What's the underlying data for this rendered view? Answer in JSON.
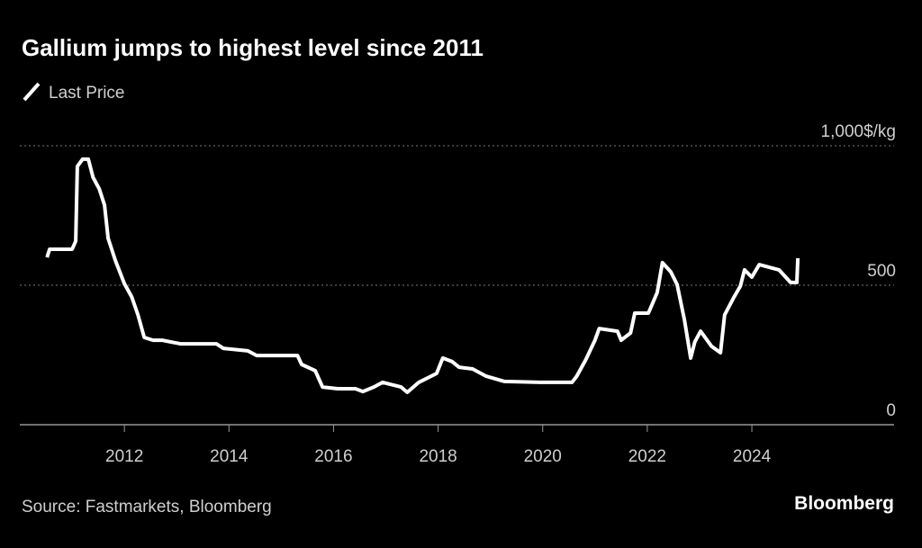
{
  "chart_data": {
    "type": "line",
    "title": "Gallium jumps to highest level since 2011",
    "source": "Source: Fastmarkets, Bloomberg",
    "brand": "Bloomberg",
    "x": [
      2010.52,
      2010.57,
      2011.0,
      2011.07,
      2011.1,
      2011.2,
      2011.31,
      2011.4,
      2011.52,
      2011.62,
      2011.69,
      2011.83,
      2012.0,
      2012.14,
      2012.26,
      2012.38,
      2012.55,
      2012.72,
      2013.07,
      2013.76,
      2013.89,
      2014.36,
      2014.53,
      2015.31,
      2015.39,
      2015.65,
      2015.79,
      2016.08,
      2016.42,
      2016.56,
      2016.77,
      2016.94,
      2017.29,
      2017.41,
      2017.63,
      2017.97,
      2018.09,
      2018.27,
      2018.4,
      2018.66,
      2018.92,
      2019.27,
      2019.95,
      2020.56,
      2020.65,
      2020.82,
      2021.0,
      2021.08,
      2021.43,
      2021.5,
      2021.68,
      2021.76,
      2022.02,
      2022.19,
      2022.29,
      2022.45,
      2022.57,
      2022.71,
      2022.83,
      2022.91,
      2023.02,
      2023.23,
      2023.4,
      2023.48,
      2023.66,
      2023.78,
      2023.86,
      2024.0,
      2024.14,
      2024.52,
      2024.74,
      2024.86,
      2024.88
    ],
    "series": [
      {
        "name": "Last Price",
        "color": "#ffffff",
        "values": [
          600,
          629,
          629,
          658,
          926,
          952,
          952,
          887,
          845,
          787,
          668,
          587,
          506,
          458,
          394,
          313,
          303,
          303,
          290,
          290,
          274,
          265,
          248,
          248,
          216,
          194,
          135,
          129,
          129,
          119,
          135,
          152,
          135,
          116,
          152,
          184,
          239,
          226,
          206,
          200,
          174,
          155,
          152,
          152,
          174,
          232,
          303,
          345,
          335,
          303,
          329,
          400,
          400,
          474,
          581,
          548,
          503,
          377,
          239,
          297,
          335,
          281,
          258,
          394,
          458,
          497,
          555,
          529,
          574,
          555,
          510,
          510,
          597
        ]
      }
    ],
    "xlim": [
      2010,
      2026.72
    ],
    "xticks": [
      2012,
      2014,
      2016,
      2018,
      2020,
      2022,
      2024
    ],
    "ylim": [
      0,
      1000
    ],
    "yticks": [
      0,
      500,
      {
        "value": 1000,
        "label": "1,000$/kg"
      }
    ],
    "grid": true
  }
}
